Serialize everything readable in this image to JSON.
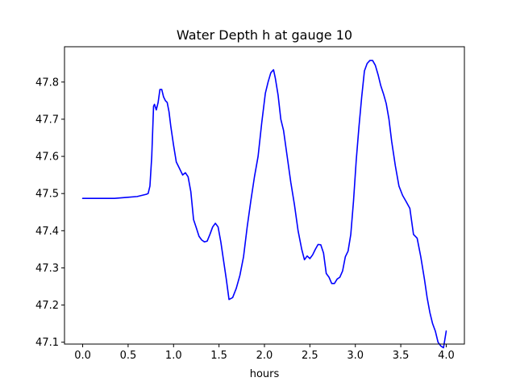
{
  "chart_data": {
    "type": "line",
    "title": "Water Depth h at gauge 10",
    "xlabel": "hours",
    "ylabel": "",
    "xlim": [
      -0.2,
      4.2
    ],
    "ylim": [
      47.095,
      47.895
    ],
    "x_ticks": [
      0.0,
      0.5,
      1.0,
      1.5,
      2.0,
      2.5,
      3.0,
      3.5,
      4.0
    ],
    "x_tick_labels": [
      "0.0",
      "0.5",
      "1.0",
      "1.5",
      "2.0",
      "2.5",
      "3.0",
      "3.5",
      "4.0"
    ],
    "y_ticks": [
      47.1,
      47.2,
      47.3,
      47.4,
      47.5,
      47.6,
      47.7,
      47.8
    ],
    "y_tick_labels": [
      "47.1",
      "47.2",
      "47.3",
      "47.4",
      "47.5",
      "47.6",
      "47.7",
      "47.8"
    ],
    "grid": false,
    "legend": false,
    "series": [
      {
        "color": "#0000ff",
        "x": [
          0.0,
          0.35,
          0.5,
          0.6,
          0.7,
          0.72,
          0.74,
          0.76,
          0.78,
          0.79,
          0.81,
          0.83,
          0.85,
          0.87,
          0.89,
          0.91,
          0.93,
          0.95,
          0.97,
          1.0,
          1.03,
          1.06,
          1.1,
          1.13,
          1.16,
          1.19,
          1.22,
          1.25,
          1.28,
          1.31,
          1.34,
          1.37,
          1.4,
          1.43,
          1.46,
          1.49,
          1.52,
          1.55,
          1.58,
          1.61,
          1.65,
          1.69,
          1.73,
          1.77,
          1.81,
          1.85,
          1.89,
          1.93,
          1.97,
          2.01,
          2.04,
          2.07,
          2.1,
          2.12,
          2.15,
          2.18,
          2.21,
          2.25,
          2.29,
          2.33,
          2.37,
          2.41,
          2.44,
          2.47,
          2.5,
          2.53,
          2.56,
          2.59,
          2.62,
          2.65,
          2.68,
          2.71,
          2.74,
          2.77,
          2.8,
          2.83,
          2.86,
          2.89,
          2.92,
          2.95,
          2.98,
          3.01,
          3.04,
          3.07,
          3.1,
          3.13,
          3.16,
          3.19,
          3.22,
          3.25,
          3.28,
          3.31,
          3.34,
          3.37,
          3.4,
          3.44,
          3.48,
          3.52,
          3.56,
          3.6,
          3.64,
          3.68,
          3.72,
          3.76,
          3.79,
          3.82,
          3.85,
          3.88,
          3.91,
          3.94,
          3.97,
          4.0
        ],
        "y": [
          47.487,
          47.487,
          47.49,
          47.492,
          47.498,
          47.5,
          47.52,
          47.6,
          47.735,
          47.74,
          47.725,
          47.745,
          47.78,
          47.78,
          47.76,
          47.75,
          47.745,
          47.72,
          47.68,
          47.63,
          47.585,
          47.57,
          47.55,
          47.556,
          47.545,
          47.505,
          47.43,
          47.408,
          47.385,
          47.375,
          47.37,
          47.372,
          47.39,
          47.41,
          47.42,
          47.41,
          47.37,
          47.32,
          47.27,
          47.215,
          47.22,
          47.245,
          47.28,
          47.33,
          47.41,
          47.48,
          47.545,
          47.6,
          47.69,
          47.77,
          47.8,
          47.825,
          47.833,
          47.81,
          47.765,
          47.7,
          47.67,
          47.6,
          47.53,
          47.47,
          47.4,
          47.35,
          47.322,
          47.332,
          47.325,
          47.335,
          47.35,
          47.363,
          47.362,
          47.34,
          47.285,
          47.275,
          47.258,
          47.258,
          47.27,
          47.275,
          47.292,
          47.33,
          47.345,
          47.39,
          47.48,
          47.59,
          47.68,
          47.76,
          47.83,
          47.85,
          47.858,
          47.858,
          47.845,
          47.82,
          47.79,
          47.768,
          47.742,
          47.7,
          47.64,
          47.575,
          47.52,
          47.495,
          47.478,
          47.46,
          47.39,
          47.38,
          47.33,
          47.27,
          47.22,
          47.18,
          47.15,
          47.13,
          47.1,
          47.09,
          47.085,
          47.13
        ]
      }
    ]
  }
}
